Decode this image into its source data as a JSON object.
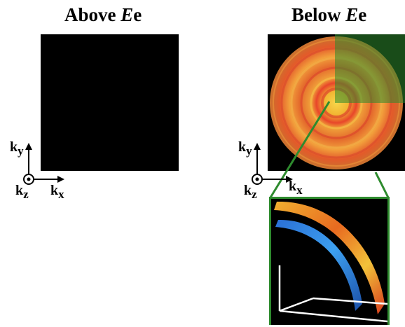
{
  "titles": {
    "left": {
      "prefix": "Above ",
      "emph": "E",
      "suffix": "e"
    },
    "right": {
      "prefix": "Below ",
      "emph": "E",
      "suffix": "e"
    }
  },
  "axes": {
    "ky": {
      "k": "k",
      "sub": "y"
    },
    "kz": {
      "k": "k",
      "sub": "z"
    },
    "kx": {
      "k": "k",
      "sub": "x"
    }
  },
  "colors": {
    "panel_background": "#000000",
    "zoom_frame": "#2e8b2e",
    "fermi_surface_warm": "#f5a623",
    "fermi_surface_cool": "#1e6fd9"
  }
}
